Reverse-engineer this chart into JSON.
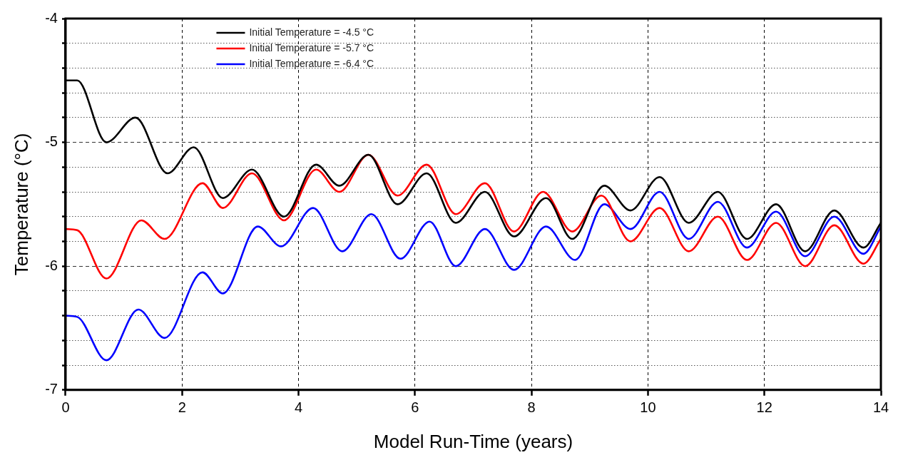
{
  "chart_data": {
    "type": "line",
    "xlabel": "Model Run-Time (years)",
    "ylabel": "Temperature (°C)",
    "xlim": [
      0,
      14
    ],
    "xticks": [
      0,
      2,
      4,
      6,
      8,
      10,
      12,
      14
    ],
    "ylim": [
      -7,
      -4
    ],
    "yticks": [
      -4,
      {
        "value": -4.2,
        "label": null
      },
      {
        "value": -4.4,
        "label": null
      },
      {
        "value": -4.6,
        "label": null
      },
      {
        "value": -4.8,
        "label": null
      },
      -5,
      {
        "value": -5.2,
        "label": null
      },
      {
        "value": -5.4,
        "label": null
      },
      {
        "value": -5.6,
        "label": null
      },
      {
        "value": -5.8,
        "label": null
      },
      -6,
      {
        "value": -6.2,
        "label": null
      },
      {
        "value": -6.4,
        "label": null
      },
      {
        "value": -6.6,
        "label": null
      },
      {
        "value": -6.8,
        "label": null
      },
      -7
    ],
    "grid": true,
    "legend": "top",
    "line_style": "solid",
    "marker": "none",
    "series": [
      {
        "name": "Initial Temperature = -4.5 °C",
        "color": "#000000",
        "x": [
          0,
          0.2,
          0.7,
          1.2,
          1.75,
          2.2,
          2.7,
          3.2,
          3.75,
          4.3,
          4.7,
          5.2,
          5.7,
          6.2,
          6.7,
          7.2,
          7.7,
          8.25,
          8.7,
          9.25,
          9.7,
          10.2,
          10.7,
          11.2,
          11.7,
          12.2,
          12.7,
          13.2,
          13.7,
          14
        ],
        "values": [
          -4.5,
          -4.5,
          -5.0,
          -4.8,
          -5.25,
          -5.04,
          -5.45,
          -5.22,
          -5.6,
          -5.18,
          -5.35,
          -5.1,
          -5.5,
          -5.25,
          -5.65,
          -5.4,
          -5.76,
          -5.45,
          -5.78,
          -5.35,
          -5.55,
          -5.28,
          -5.65,
          -5.4,
          -5.78,
          -5.5,
          -5.88,
          -5.55,
          -5.85,
          -5.65
        ]
      },
      {
        "name": "Initial Temperature = -5.7 °C",
        "color": "#ff0000",
        "x": [
          0,
          0.2,
          0.7,
          1.3,
          1.7,
          2.35,
          2.7,
          3.2,
          3.75,
          4.3,
          4.7,
          5.2,
          5.7,
          6.2,
          6.7,
          7.2,
          7.7,
          8.2,
          8.7,
          9.2,
          9.7,
          10.2,
          10.7,
          11.2,
          11.7,
          12.2,
          12.7,
          13.2,
          13.7,
          14
        ],
        "values": [
          -5.7,
          -5.71,
          -6.1,
          -5.63,
          -5.78,
          -5.33,
          -5.53,
          -5.25,
          -5.63,
          -5.22,
          -5.4,
          -5.1,
          -5.43,
          -5.18,
          -5.58,
          -5.33,
          -5.72,
          -5.4,
          -5.72,
          -5.43,
          -5.8,
          -5.53,
          -5.88,
          -5.6,
          -5.95,
          -5.65,
          -6.0,
          -5.67,
          -5.98,
          -5.78
        ]
      },
      {
        "name": "Initial Temperature = -6.4 °C",
        "color": "#0000ff",
        "x": [
          0,
          0.2,
          0.7,
          1.25,
          1.7,
          2.35,
          2.7,
          3.3,
          3.7,
          4.25,
          4.75,
          5.25,
          5.75,
          6.25,
          6.7,
          7.2,
          7.7,
          8.25,
          8.75,
          9.25,
          9.7,
          10.2,
          10.7,
          11.2,
          11.7,
          12.2,
          12.7,
          13.2,
          13.7,
          14
        ],
        "values": [
          -6.4,
          -6.41,
          -6.76,
          -6.35,
          -6.58,
          -6.05,
          -6.22,
          -5.68,
          -5.84,
          -5.53,
          -5.88,
          -5.58,
          -5.94,
          -5.64,
          -6.0,
          -5.7,
          -6.03,
          -5.68,
          -5.95,
          -5.5,
          -5.7,
          -5.4,
          -5.78,
          -5.48,
          -5.85,
          -5.56,
          -5.92,
          -5.6,
          -5.9,
          -5.68
        ]
      }
    ]
  }
}
